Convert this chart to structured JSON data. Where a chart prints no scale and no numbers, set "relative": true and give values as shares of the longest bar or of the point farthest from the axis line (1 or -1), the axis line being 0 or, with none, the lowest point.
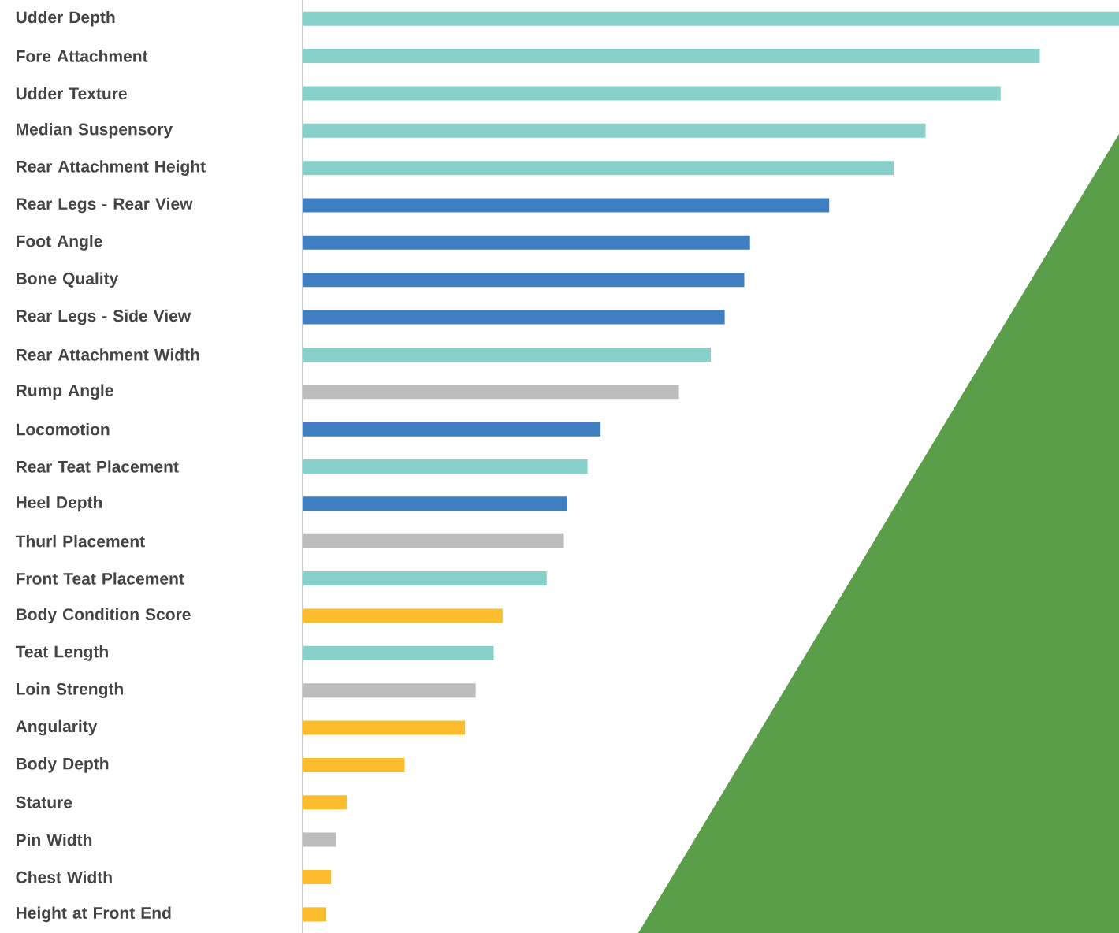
{
  "chart_data": {
    "type": "bar",
    "orientation": "horizontal",
    "relative": true,
    "categories": [
      "Udder Depth",
      "Fore Attachment",
      "Udder Texture",
      "Median Suspensory",
      "Rear Attachment Height",
      "Rear Legs - Rear View",
      "Foot Angle",
      "Bone Quality",
      "Rear Legs - Side View",
      "Rear Attachment Width",
      "Rump Angle",
      "Locomotion",
      "Rear Teat Placement",
      "Heel Depth",
      "Thurl Placement",
      "Front Teat Placement",
      "Body Condition Score",
      "Teat Length",
      "Loin Strength",
      "Angularity",
      "Body Depth",
      "Stature",
      "Pin Width",
      "Chest Width",
      "Height at Front End"
    ],
    "values": [
      1,
      0.903,
      0.855,
      0.763,
      0.724,
      0.645,
      0.548,
      0.541,
      0.517,
      0.5,
      0.461,
      0.365,
      0.349,
      0.324,
      0.32,
      0.299,
      0.245,
      0.234,
      0.212,
      0.199,
      0.125,
      0.054,
      0.041,
      0.035,
      0.029
    ],
    "colors": [
      "#88d1cb",
      "#88d1cb",
      "#88d1cb",
      "#88d1cb",
      "#88d1cb",
      "#3f7fc1",
      "#3f7fc1",
      "#3f7fc1",
      "#3f7fc1",
      "#88d1cb",
      "#bcbcbd",
      "#3f7fc1",
      "#88d1cb",
      "#3f7fc1",
      "#bcbcbd",
      "#88d1cb",
      "#fbbd2c",
      "#88d1cb",
      "#bcbcbd",
      "#fbbd2c",
      "#fbbd2c",
      "#fbbd2c",
      "#bcbcbd",
      "#fbbd2c",
      "#fbbd2c"
    ]
  }
}
